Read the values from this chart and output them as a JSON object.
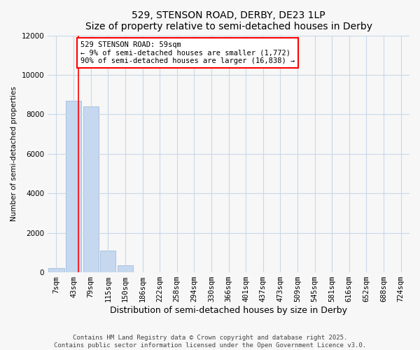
{
  "title": "529, STENSON ROAD, DERBY, DE23 1LP",
  "subtitle": "Size of property relative to semi-detached houses in Derby",
  "xlabel": "Distribution of semi-detached houses by size in Derby",
  "ylabel": "Number of semi-detached properties",
  "categories": [
    "7sqm",
    "43sqm",
    "79sqm",
    "115sqm",
    "150sqm",
    "186sqm",
    "222sqm",
    "258sqm",
    "294sqm",
    "330sqm",
    "366sqm",
    "401sqm",
    "437sqm",
    "473sqm",
    "509sqm",
    "545sqm",
    "581sqm",
    "616sqm",
    "652sqm",
    "688sqm",
    "724sqm"
  ],
  "values": [
    210,
    8700,
    8400,
    1100,
    350,
    10,
    2,
    1,
    0,
    0,
    0,
    0,
    0,
    0,
    0,
    0,
    0,
    0,
    0,
    0,
    0
  ],
  "bar_color": "#c5d8f0",
  "bar_edge_color": "#a0bcd8",
  "annotation_text": "529 STENSON ROAD: 59sqm\n← 9% of semi-detached houses are smaller (1,772)\n90% of semi-detached houses are larger (16,838) →",
  "red_line_x": 1.3,
  "ylim": [
    0,
    12000
  ],
  "yticks": [
    0,
    2000,
    4000,
    6000,
    8000,
    10000,
    12000
  ],
  "background_color": "#f7f7f7",
  "grid_color": "#c8d8e8",
  "footnote1": "Contains HM Land Registry data © Crown copyright and database right 2025.",
  "footnote2": "Contains public sector information licensed under the Open Government Licence v3.0."
}
